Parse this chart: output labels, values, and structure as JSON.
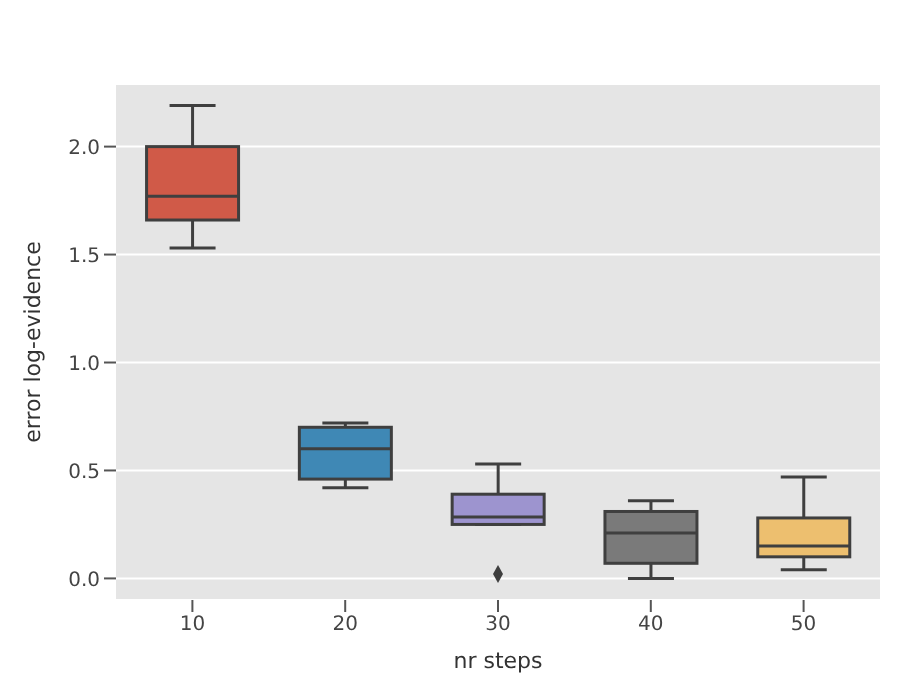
{
  "chart_data": {
    "type": "box",
    "xlabel": "nr steps",
    "ylabel": "error log-evidence",
    "categories": [
      "10",
      "20",
      "30",
      "40",
      "50"
    ],
    "colors": [
      "#d05a48",
      "#3f88b5",
      "#9d94cf",
      "#7a7a7a",
      "#edbf6f"
    ],
    "boxes": [
      {
        "low": 1.53,
        "q1": 1.66,
        "median": 1.77,
        "q3": 2.0,
        "high": 2.19
      },
      {
        "low": 0.42,
        "q1": 0.46,
        "median": 0.6,
        "q3": 0.7,
        "high": 0.72
      },
      {
        "low": 0.25,
        "q1": 0.25,
        "median": 0.285,
        "q3": 0.39,
        "high": 0.53,
        "outliers": [
          0.02
        ]
      },
      {
        "low": 0.0,
        "q1": 0.07,
        "median": 0.21,
        "q3": 0.31,
        "high": 0.36
      },
      {
        "low": 0.04,
        "q1": 0.1,
        "median": 0.15,
        "q3": 0.28,
        "high": 0.47
      }
    ],
    "ylim": [
      -0.1,
      2.29
    ],
    "yticks": [
      {
        "value": 0,
        "label": "0.0"
      },
      {
        "value": 0.5,
        "label": "0.5"
      },
      {
        "value": 1,
        "label": "1.0"
      },
      {
        "value": 1.5,
        "label": "1.5"
      },
      {
        "value": 2,
        "label": "2.0"
      }
    ],
    "grid": "y"
  }
}
